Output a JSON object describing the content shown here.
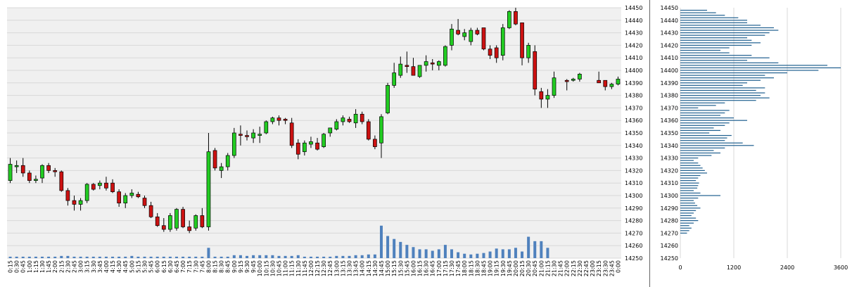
{
  "chart_data": [
    {
      "type": "candlestick",
      "title": "",
      "xlabel": "",
      "ylabel": "",
      "ylim": [
        14250,
        14450
      ],
      "y_ticks": [
        14250,
        14260,
        14270,
        14280,
        14290,
        14300,
        14310,
        14320,
        14330,
        14340,
        14350,
        14360,
        14370,
        14380,
        14390,
        14400,
        14410,
        14420,
        14430,
        14440,
        14450
      ],
      "x_labels": [
        "0:15",
        "0:30",
        "0:45",
        "1:00",
        "1:15",
        "1:30",
        "1:45",
        "2:00",
        "2:15",
        "2:30",
        "2:45",
        "3:00",
        "3:15",
        "3:30",
        "3:45",
        "4:00",
        "4:15",
        "4:30",
        "4:45",
        "5:00",
        "5:15",
        "5:30",
        "5:45",
        "6:00",
        "6:15",
        "6:30",
        "6:45",
        "7:00",
        "7:15",
        "7:30",
        "7:45",
        "8:00",
        "8:15",
        "8:30",
        "8:45",
        "9:00",
        "9:15",
        "9:30",
        "9:45",
        "10:00",
        "10:15",
        "10:30",
        "10:45",
        "11:00",
        "11:15",
        "11:30",
        "11:45",
        "12:00",
        "12:15",
        "12:30",
        "12:45",
        "13:00",
        "13:15",
        "13:30",
        "13:45",
        "14:00",
        "14:15",
        "14:30",
        "14:45",
        "15:00",
        "15:15",
        "15:30",
        "15:45",
        "16:00",
        "16:15",
        "16:30",
        "16:45",
        "17:00",
        "17:15",
        "17:30",
        "17:45",
        "18:00",
        "18:15",
        "18:30",
        "18:45",
        "19:00",
        "19:15",
        "19:30",
        "19:45",
        "20:00",
        "20:15",
        "20:30",
        "20:45",
        "21:00",
        "21:15",
        "21:30",
        "21:45",
        "22:00",
        "22:15",
        "22:30",
        "22:45",
        "23:00",
        "23:15",
        "23:30",
        "23:45",
        "0:00"
      ],
      "up_color": "#22cc22",
      "down_color": "#cc1111",
      "volume_color": "#4f81bd",
      "grid": true,
      "bars": [
        {
          "o": 14312,
          "h": 14330,
          "l": 14310,
          "c": 14325
        },
        {
          "o": 14323,
          "h": 14328,
          "l": 14318,
          "c": 14324
        },
        {
          "o": 14324,
          "h": 14330,
          "l": 14315,
          "c": 14318
        },
        {
          "o": 14318,
          "h": 14320,
          "l": 14310,
          "c": 14312
        },
        {
          "o": 14312,
          "h": 14316,
          "l": 14310,
          "c": 14313
        },
        {
          "o": 14314,
          "h": 14325,
          "l": 14310,
          "c": 14324
        },
        {
          "o": 14324,
          "h": 14326,
          "l": 14318,
          "c": 14320
        },
        {
          "o": 14320,
          "h": 14322,
          "l": 14315,
          "c": 14319
        },
        {
          "o": 14319,
          "h": 14320,
          "l": 14303,
          "c": 14304
        },
        {
          "o": 14304,
          "h": 14306,
          "l": 14292,
          "c": 14296
        },
        {
          "o": 14296,
          "h": 14300,
          "l": 14288,
          "c": 14293
        },
        {
          "o": 14293,
          "h": 14298,
          "l": 14288,
          "c": 14296
        },
        {
          "o": 14296,
          "h": 14310,
          "l": 14294,
          "c": 14309
        },
        {
          "o": 14309,
          "h": 14310,
          "l": 14304,
          "c": 14305
        },
        {
          "o": 14308,
          "h": 14312,
          "l": 14305,
          "c": 14310
        },
        {
          "o": 14310,
          "h": 14315,
          "l": 14304,
          "c": 14306
        },
        {
          "o": 14310,
          "h": 14313,
          "l": 14302,
          "c": 14303
        },
        {
          "o": 14303,
          "h": 14305,
          "l": 14291,
          "c": 14294
        },
        {
          "o": 14294,
          "h": 14302,
          "l": 14290,
          "c": 14300
        },
        {
          "o": 14300,
          "h": 14305,
          "l": 14298,
          "c": 14302
        },
        {
          "o": 14301,
          "h": 14303,
          "l": 14298,
          "c": 14299
        },
        {
          "o": 14298,
          "h": 14300,
          "l": 14290,
          "c": 14292
        },
        {
          "o": 14292,
          "h": 14295,
          "l": 14282,
          "c": 14283
        },
        {
          "o": 14283,
          "h": 14286,
          "l": 14275,
          "c": 14276
        },
        {
          "o": 14276,
          "h": 14282,
          "l": 14271,
          "c": 14273
        },
        {
          "o": 14273,
          "h": 14286,
          "l": 14271,
          "c": 14284
        },
        {
          "o": 14274,
          "h": 14290,
          "l": 14272,
          "c": 14289
        },
        {
          "o": 14289,
          "h": 14291,
          "l": 14274,
          "c": 14275
        },
        {
          "o": 14275,
          "h": 14280,
          "l": 14270,
          "c": 14272
        },
        {
          "o": 14274,
          "h": 14285,
          "l": 14272,
          "c": 14284
        },
        {
          "o": 14284,
          "h": 14290,
          "l": 14274,
          "c": 14275
        },
        {
          "o": 14275,
          "h": 14350,
          "l": 14272,
          "c": 14335
        },
        {
          "o": 14336,
          "h": 14338,
          "l": 14320,
          "c": 14322
        },
        {
          "o": 14320,
          "h": 14326,
          "l": 14314,
          "c": 14323
        },
        {
          "o": 14323,
          "h": 14334,
          "l": 14320,
          "c": 14332
        },
        {
          "o": 14332,
          "h": 14354,
          "l": 14330,
          "c": 14350
        },
        {
          "o": 14349,
          "h": 14356,
          "l": 14340,
          "c": 14348
        },
        {
          "o": 14348,
          "h": 14352,
          "l": 14344,
          "c": 14347
        },
        {
          "o": 14346,
          "h": 14353,
          "l": 14342,
          "c": 14350
        },
        {
          "o": 14348,
          "h": 14355,
          "l": 14342,
          "c": 14349
        },
        {
          "o": 14350,
          "h": 14360,
          "l": 14349,
          "c": 14359
        },
        {
          "o": 14359,
          "h": 14363,
          "l": 14357,
          "c": 14362
        },
        {
          "o": 14362,
          "h": 14364,
          "l": 14356,
          "c": 14360
        },
        {
          "o": 14361,
          "h": 14362,
          "l": 14357,
          "c": 14360
        },
        {
          "o": 14358,
          "h": 14362,
          "l": 14338,
          "c": 14340
        },
        {
          "o": 14342,
          "h": 14345,
          "l": 14329,
          "c": 14333
        },
        {
          "o": 14335,
          "h": 14344,
          "l": 14332,
          "c": 14342
        },
        {
          "o": 14341,
          "h": 14347,
          "l": 14338,
          "c": 14343
        },
        {
          "o": 14342,
          "h": 14346,
          "l": 14336,
          "c": 14337
        },
        {
          "o": 14339,
          "h": 14350,
          "l": 14338,
          "c": 14349
        },
        {
          "o": 14350,
          "h": 14353,
          "l": 14347,
          "c": 14354
        },
        {
          "o": 14353,
          "h": 14361,
          "l": 14352,
          "c": 14359
        },
        {
          "o": 14359,
          "h": 14364,
          "l": 14356,
          "c": 14362
        },
        {
          "o": 14361,
          "h": 14363,
          "l": 14358,
          "c": 14359
        },
        {
          "o": 14358,
          "h": 14369,
          "l": 14354,
          "c": 14365
        },
        {
          "o": 14365,
          "h": 14367,
          "l": 14357,
          "c": 14359
        },
        {
          "o": 14359,
          "h": 14361,
          "l": 14344,
          "c": 14345
        },
        {
          "o": 14345,
          "h": 14348,
          "l": 14337,
          "c": 14339
        },
        {
          "o": 14342,
          "h": 14365,
          "l": 14330,
          "c": 14363
        },
        {
          "o": 14366,
          "h": 14390,
          "l": 14365,
          "c": 14388
        },
        {
          "o": 14388,
          "h": 14406,
          "l": 14386,
          "c": 14398
        },
        {
          "o": 14396,
          "h": 14411,
          "l": 14394,
          "c": 14405
        },
        {
          "o": 14404,
          "h": 14415,
          "l": 14398,
          "c": 14403
        },
        {
          "o": 14403,
          "h": 14410,
          "l": 14398,
          "c": 14396
        },
        {
          "o": 14395,
          "h": 14404,
          "l": 14394,
          "c": 14404
        },
        {
          "o": 14404,
          "h": 14412,
          "l": 14399,
          "c": 14407
        },
        {
          "o": 14406,
          "h": 14409,
          "l": 14400,
          "c": 14405
        },
        {
          "o": 14404,
          "h": 14408,
          "l": 14400,
          "c": 14407
        },
        {
          "o": 14404,
          "h": 14420,
          "l": 14403,
          "c": 14419
        },
        {
          "o": 14420,
          "h": 14437,
          "l": 14416,
          "c": 14433
        },
        {
          "o": 14432,
          "h": 14441,
          "l": 14428,
          "c": 14429
        },
        {
          "o": 14427,
          "h": 14433,
          "l": 14424,
          "c": 14430
        },
        {
          "o": 14423,
          "h": 14434,
          "l": 14420,
          "c": 14432
        },
        {
          "o": 14432,
          "h": 14434,
          "l": 14428,
          "c": 14429
        },
        {
          "o": 14434,
          "h": 14434,
          "l": 14416,
          "c": 14417
        },
        {
          "o": 14417,
          "h": 14420,
          "l": 14409,
          "c": 14412
        },
        {
          "o": 14418,
          "h": 14420,
          "l": 14406,
          "c": 14410
        },
        {
          "o": 14412,
          "h": 14437,
          "l": 14408,
          "c": 14434
        },
        {
          "o": 14434,
          "h": 14448,
          "l": 14433,
          "c": 14447
        },
        {
          "o": 14447,
          "h": 14450,
          "l": 14436,
          "c": 14437
        },
        {
          "o": 14438,
          "h": 14438,
          "l": 14404,
          "c": 14410
        },
        {
          "o": 14410,
          "h": 14422,
          "l": 14406,
          "c": 14420
        },
        {
          "o": 14415,
          "h": 14420,
          "l": 14380,
          "c": 14385
        },
        {
          "o": 14383,
          "h": 14386,
          "l": 14370,
          "c": 14377
        },
        {
          "o": 14377,
          "h": 14385,
          "l": 14370,
          "c": 14380
        },
        {
          "o": 14380,
          "h": 14399,
          "l": 14378,
          "c": 14394
        },
        null,
        {
          "o": 14392,
          "h": 14393,
          "l": 14384,
          "c": 14391
        },
        {
          "o": 14392,
          "h": 14394,
          "l": 14391,
          "c": 14393
        },
        {
          "o": 14393,
          "h": 14398,
          "l": 14391,
          "c": 14397
        },
        null,
        null,
        {
          "o": 14392,
          "h": 14399,
          "l": 14390,
          "c": 14390
        },
        {
          "o": 14392,
          "h": 14392,
          "l": 14384,
          "c": 14387
        },
        {
          "o": 14387,
          "h": 14390,
          "l": 14385,
          "c": 14389
        },
        {
          "o": 14389,
          "h": 14395,
          "l": 14388,
          "c": 14393
        }
      ],
      "volume_level": [
        0.02,
        0.02,
        0.02,
        0.02,
        0.02,
        0.02,
        0.02,
        0.02,
        0.03,
        0.03,
        0.02,
        0.02,
        0.02,
        0.02,
        0.02,
        0.02,
        0.02,
        0.02,
        0.02,
        0.03,
        0.02,
        0.02,
        0.02,
        0.02,
        0.02,
        0.02,
        0.02,
        0.02,
        0.02,
        0.02,
        0.02,
        0.14,
        0.02,
        0.02,
        0.02,
        0.04,
        0.04,
        0.03,
        0.04,
        0.04,
        0.04,
        0.04,
        0.03,
        0.03,
        0.03,
        0.04,
        0.02,
        0.02,
        0.02,
        0.02,
        0.02,
        0.03,
        0.03,
        0.03,
        0.04,
        0.04,
        0.05,
        0.05,
        0.44,
        0.3,
        0.26,
        0.22,
        0.18,
        0.15,
        0.12,
        0.12,
        0.1,
        0.12,
        0.18,
        0.12,
        0.08,
        0.06,
        0.05,
        0.06,
        0.07,
        0.09,
        0.13,
        0.12,
        0.12,
        0.14,
        0.09,
        0.29,
        0.23,
        0.23,
        0.14,
        0,
        0,
        0,
        0,
        0,
        0,
        0,
        0,
        0,
        0,
        0
      ]
    },
    {
      "type": "horizontal_bar",
      "title": "",
      "xlim": [
        0,
        3600
      ],
      "x_ticks": [
        0,
        1200,
        2400,
        3600
      ],
      "y_ticks": [
        14250,
        14260,
        14270,
        14280,
        14290,
        14300,
        14310,
        14320,
        14330,
        14340,
        14350,
        14360,
        14370,
        14380,
        14390,
        14400,
        14410,
        14420,
        14430,
        14440,
        14450
      ],
      "ylim": [
        14250,
        14450
      ],
      "bar_color": "#1f5f8f",
      "price_levels": [
        14270,
        14272,
        14274,
        14276,
        14278,
        14280,
        14282,
        14284,
        14286,
        14288,
        14290,
        14292,
        14294,
        14296,
        14298,
        14300,
        14302,
        14304,
        14306,
        14308,
        14310,
        14312,
        14314,
        14316,
        14318,
        14320,
        14322,
        14324,
        14326,
        14328,
        14330,
        14332,
        14334,
        14336,
        14338,
        14340,
        14342,
        14344,
        14346,
        14348,
        14350,
        14352,
        14354,
        14356,
        14358,
        14360,
        14362,
        14364,
        14366,
        14368,
        14370,
        14372,
        14374,
        14376,
        14378,
        14380,
        14382,
        14384,
        14386,
        14388,
        14390,
        14392,
        14394,
        14396,
        14398,
        14400,
        14402,
        14404,
        14406,
        14408,
        14410,
        14412,
        14414,
        14416,
        14418,
        14420,
        14422,
        14424,
        14426,
        14428,
        14430,
        14432,
        14434,
        14436,
        14438,
        14440,
        14442,
        14444,
        14446,
        14448
      ],
      "volumes": [
        150,
        200,
        250,
        200,
        300,
        400,
        350,
        250,
        300,
        350,
        450,
        380,
        330,
        300,
        400,
        900,
        450,
        300,
        380,
        400,
        420,
        350,
        400,
        450,
        600,
        550,
        500,
        450,
        400,
        300,
        400,
        700,
        900,
        750,
        1000,
        1650,
        1400,
        1000,
        1050,
        1150,
        650,
        900,
        750,
        1000,
        1100,
        1500,
        1200,
        900,
        1000,
        1100,
        400,
        800,
        1000,
        1700,
        2000,
        1800,
        1900,
        1700,
        1900,
        1400,
        1500,
        1800,
        2100,
        1900,
        2400,
        3100,
        3600,
        3300,
        2200,
        1500,
        2000,
        1600,
        1100,
        900,
        1100,
        1600,
        1800,
        1600,
        1500,
        1900,
        2000,
        2200,
        2100,
        1800,
        1500,
        1500,
        1300,
        1000,
        800,
        600
      ]
    }
  ]
}
